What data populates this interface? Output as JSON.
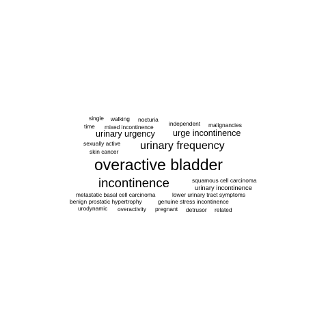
{
  "word_cloud": {
    "words": {
      "overactive_bladder": "overactive bladder",
      "incontinence": "incontinence",
      "urinary_frequency": "urinary frequency",
      "urge_incontinence": "urge incontinence",
      "urinary_urgency": "urinary urgency",
      "single": "single",
      "walking": "walking",
      "nocturia": "nocturia",
      "time": "time",
      "mixed_incontinence": "mixed incontinence",
      "independent": "independent",
      "malignancies": "malignancies",
      "sexually_active": "sexually active",
      "skin_cancer": "skin cancer",
      "squamous_cell_carcinoma": "squamous cell carcinoma",
      "urinary_incontinence": "urinary incontinence",
      "metastatic_basal_cell_carcinoma": "metastatic basal cell carcinoma",
      "lower_urinary_tract_symptoms": "lower urinary tract symptoms",
      "benign_prostatic_hypertrophy": "benign prostatic hypertrophy",
      "genuine_stress_incontinence": "genuine stress incontinence",
      "urodynamic": "urodynamic",
      "overactivity": "overactivity",
      "pregnant": "pregnant",
      "detrusor": "detrusor",
      "related": "related"
    },
    "colors": {
      "text": "#000000",
      "background": "#ffffff"
    }
  }
}
